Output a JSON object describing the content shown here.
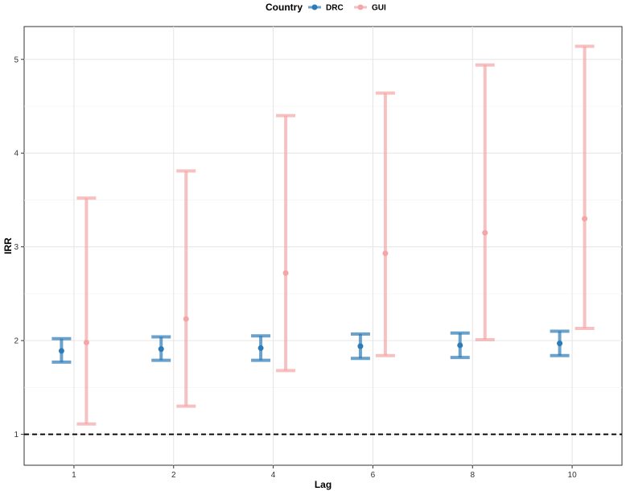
{
  "chart_data": {
    "type": "scatter",
    "title": "",
    "xlabel": "Lag",
    "ylabel": "IRR",
    "categories": [
      "1",
      "2",
      "4",
      "6",
      "8",
      "10"
    ],
    "ylim": [
      0.67,
      5.35
    ],
    "yticks": [
      1,
      2,
      3,
      4,
      5
    ],
    "grid": true,
    "reference_line": {
      "y": 1,
      "style": "dashed",
      "color": "#000000"
    },
    "legend": {
      "title": "Country",
      "position": "top"
    },
    "series": [
      {
        "name": "DRC",
        "color": "#2C7BB6",
        "estimate": [
          1.89,
          1.91,
          1.92,
          1.94,
          1.95,
          1.97
        ],
        "lower": [
          1.77,
          1.79,
          1.79,
          1.81,
          1.82,
          1.84
        ],
        "upper": [
          2.02,
          2.04,
          2.05,
          2.07,
          2.08,
          2.1
        ]
      },
      {
        "name": "GUI",
        "color": "#F4A6A6",
        "estimate": [
          1.98,
          2.23,
          2.72,
          2.93,
          3.15,
          3.3
        ],
        "lower": [
          1.11,
          1.3,
          1.68,
          1.84,
          2.01,
          2.13
        ],
        "upper": [
          3.52,
          3.81,
          4.4,
          4.64,
          4.94,
          5.14
        ]
      }
    ]
  }
}
